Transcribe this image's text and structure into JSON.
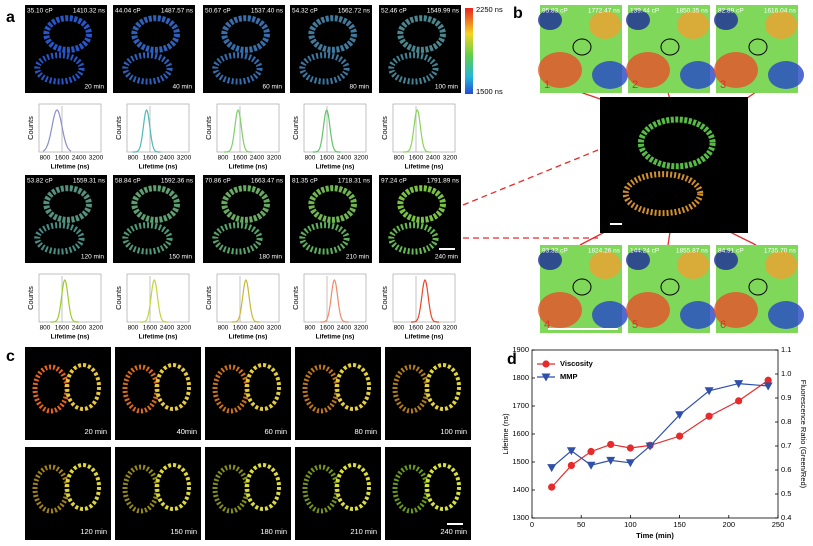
{
  "panel_a": {
    "label": "a",
    "colorbar": [
      "2250 ns",
      "1500 ns"
    ],
    "frames": [
      {
        "viscosity": "35.10 cP",
        "lifetime": "1410.32 ns",
        "time": "20 min"
      },
      {
        "viscosity": "44.04 cP",
        "lifetime": "1487.57 ns",
        "time": "40 min"
      },
      {
        "viscosity": "50.67 cP",
        "lifetime": "1537.40 ns",
        "time": "60 min"
      },
      {
        "viscosity": "54.32 cP",
        "lifetime": "1562.72 ns",
        "time": "80 min"
      },
      {
        "viscosity": "52.46 cP",
        "lifetime": "1549.99 ns",
        "time": "100 min"
      },
      {
        "viscosity": "53.82 cP",
        "lifetime": "1559.31 ns",
        "time": "120 min"
      },
      {
        "viscosity": "58.84 cP",
        "lifetime": "1592.36 ns",
        "time": "150 min"
      },
      {
        "viscosity": "70.86 cP",
        "lifetime": "1663.47 ns",
        "time": "180 min"
      },
      {
        "viscosity": "81.35 cP",
        "lifetime": "1718.31 ns",
        "time": "210 min"
      },
      {
        "viscosity": "97.24 cP",
        "lifetime": "1791.89 ns",
        "time": "240 min"
      }
    ],
    "histogram": {
      "ylabel": "Counts",
      "xlabel": "Lifetime (ns)",
      "xticks": [
        800,
        1600,
        2400,
        3200
      ]
    }
  },
  "panel_b": {
    "label": "b",
    "top": [
      {
        "viscosity": "95.83 cP",
        "lifetime": "1772.47 ns",
        "index": "1"
      },
      {
        "viscosity": "139.44 cP",
        "lifetime": "1850.35 ns",
        "index": "2"
      },
      {
        "viscosity": "82.89 cP",
        "lifetime": "1616.04 ns",
        "index": "3"
      }
    ],
    "bottom": [
      {
        "viscosity": "93.32 cP",
        "lifetime": "1824.26 ns",
        "index": "4"
      },
      {
        "viscosity": "144.24 cP",
        "lifetime": "1855.87 ns",
        "index": "5"
      },
      {
        "viscosity": "84.91 cP",
        "lifetime": "1735.70 ns",
        "index": "6"
      }
    ]
  },
  "panel_c": {
    "label": "c",
    "times": [
      "20 min",
      "40min",
      "60 min",
      "80 min",
      "100 min",
      "120 min",
      "150 min",
      "180 min",
      "210 min",
      "240 min"
    ]
  },
  "panel_label_d": "d",
  "chart_data": {
    "type": "line",
    "xlabel": "Time (min)",
    "ylabel": "Lifetime (ns)",
    "y2label": "Fluorescence Ratio (Green/Red)",
    "x": [
      20,
      40,
      60,
      80,
      100,
      120,
      150,
      180,
      210,
      240
    ],
    "series": [
      {
        "name": "Viscosity",
        "color": "#e52b2b",
        "marker": "circle",
        "axis": "y",
        "values": [
          1410.32,
          1487.57,
          1537.4,
          1562.72,
          1549.99,
          1559.31,
          1592.36,
          1663.47,
          1718.31,
          1791.89
        ]
      },
      {
        "name": "MMP",
        "color": "#2f4fa8",
        "marker": "triangle",
        "axis": "y2",
        "values": [
          0.61,
          0.68,
          0.62,
          0.64,
          0.63,
          0.7,
          0.83,
          0.93,
          0.96,
          0.95
        ]
      }
    ],
    "xlim": [
      0,
      250
    ],
    "xticks": [
      0,
      50,
      100,
      150,
      200,
      250
    ],
    "ylim": [
      1300,
      1900
    ],
    "yticks": [
      1300,
      1400,
      1500,
      1600,
      1700,
      1800,
      1900
    ],
    "y2lim": [
      0.4,
      1.1
    ],
    "y2ticks": [
      0.4,
      0.5,
      0.6,
      0.7,
      0.8,
      0.9,
      {
        "value": 1.0,
        "label": "1.0"
      },
      1.1
    ],
    "legend": "upper left"
  }
}
